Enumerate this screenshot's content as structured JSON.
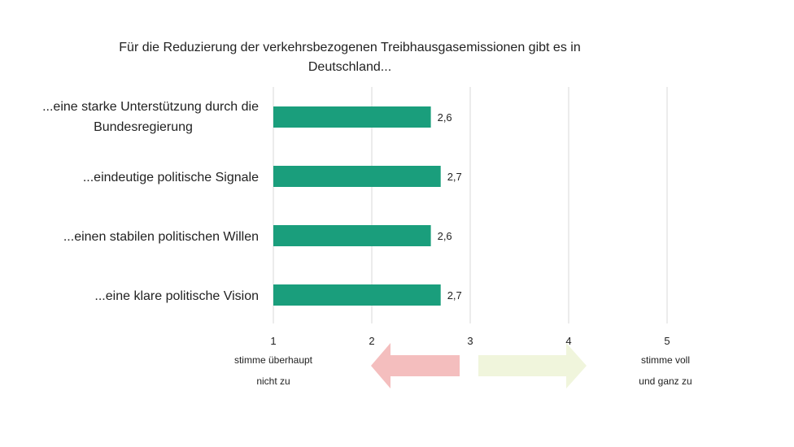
{
  "chart_data": {
    "type": "bar",
    "orientation": "horizontal",
    "title_lines": [
      "Für die Reduzierung der verkehrsbezogenen Treibhausgasemissionen gibt es in",
      "Deutschland..."
    ],
    "categories": [
      [
        "...eine starke Unterstützung durch die",
        "Bundesregierung"
      ],
      [
        "...eindeutige politische Signale"
      ],
      [
        "...einen stabilen politischen Willen"
      ],
      [
        "...eine klare politische Vision"
      ]
    ],
    "values": [
      2.6,
      2.7,
      2.6,
      2.7
    ],
    "value_labels": [
      "2,6",
      "2,7",
      "2,6",
      "2,7"
    ],
    "xlim": [
      1,
      5
    ],
    "xticks": [
      1,
      2,
      3,
      4,
      5
    ],
    "xtick_labels": [
      "1",
      "2",
      "3",
      "4",
      "5"
    ],
    "grid": true,
    "bar_color": "#1a9e7c",
    "scale_left_label": [
      "stimme überhaupt",
      "nicht zu"
    ],
    "scale_right_label": [
      "stimme voll",
      "und ganz zu"
    ],
    "arrow_left_color": "#f4bebe",
    "arrow_right_color": "#f0f5dc"
  }
}
